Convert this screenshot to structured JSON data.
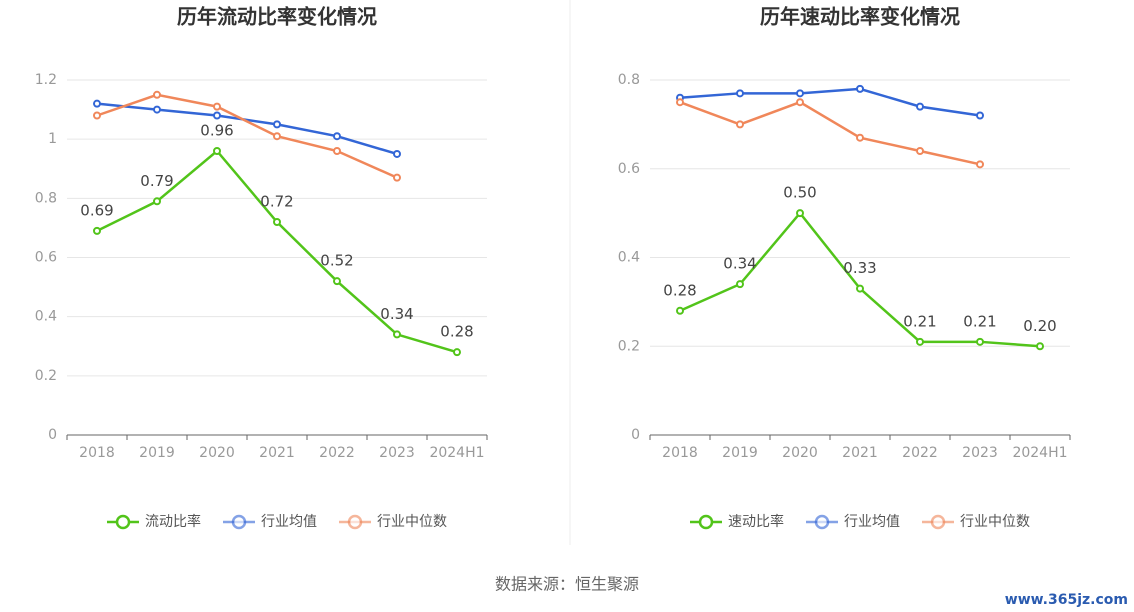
{
  "chart_data": [
    {
      "type": "line",
      "title": "历年流动比率变化情况",
      "categories": [
        "2018",
        "2019",
        "2020",
        "2021",
        "2022",
        "2023",
        "2024H1"
      ],
      "series": [
        {
          "name": "流动比率",
          "color": "#52c41a",
          "values": [
            0.69,
            0.79,
            0.96,
            0.72,
            0.52,
            0.34,
            0.28
          ],
          "value_labels": [
            "0.69",
            "0.79",
            "0.96",
            "0.72",
            "0.52",
            "0.34",
            "0.28"
          ]
        },
        {
          "name": "行业均值",
          "color": "#3366d6",
          "values": [
            1.12,
            1.1,
            1.08,
            1.05,
            1.01,
            0.95,
            null
          ]
        },
        {
          "name": "行业中位数",
          "color": "#f0875a",
          "values": [
            1.08,
            1.15,
            1.11,
            1.01,
            0.96,
            0.87,
            null
          ]
        }
      ],
      "ylim": [
        0,
        1.2
      ],
      "yticks": [
        0,
        0.2,
        0.4,
        0.6,
        0.8,
        1,
        1.2
      ],
      "grid": true,
      "legend": "bottom"
    },
    {
      "type": "line",
      "title": "历年速动比率变化情况",
      "categories": [
        "2018",
        "2019",
        "2020",
        "2021",
        "2022",
        "2023",
        "2024H1"
      ],
      "series": [
        {
          "name": "速动比率",
          "color": "#52c41a",
          "values": [
            0.28,
            0.34,
            0.5,
            0.33,
            0.21,
            0.21,
            0.2
          ],
          "value_labels": [
            "0.28",
            "0.34",
            "0.50",
            "0.33",
            "0.21",
            "0.21",
            "0.20"
          ]
        },
        {
          "name": "行业均值",
          "color": "#3366d6",
          "values": [
            0.76,
            0.77,
            0.77,
            0.78,
            0.74,
            0.72,
            null
          ]
        },
        {
          "name": "行业中位数",
          "color": "#f0875a",
          "values": [
            0.75,
            0.7,
            0.75,
            0.67,
            0.64,
            0.61,
            null
          ]
        }
      ],
      "ylim": [
        0,
        0.8
      ],
      "yticks": [
        0,
        0.2,
        0.4,
        0.6,
        0.8
      ],
      "grid": true,
      "legend": "bottom"
    }
  ],
  "source": "数据来源：恒生聚源",
  "watermark": "www.365jz.com"
}
